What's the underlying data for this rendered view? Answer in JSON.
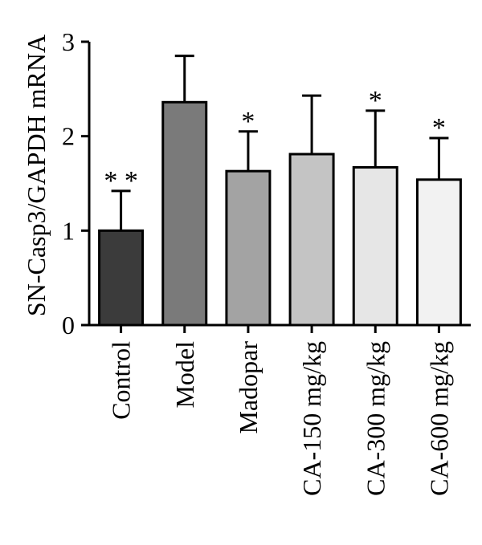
{
  "chart_data": {
    "type": "bar",
    "ylabel": "SN-Casp3/GAPDH mRNA",
    "xlabel": "",
    "ylim": [
      0,
      3
    ],
    "yticks": [
      0,
      1,
      2,
      3
    ],
    "grid": false,
    "categories": [
      "Control",
      "Model",
      "Madopar",
      "CA-150 mg/kg",
      "CA-300 mg/kg",
      "CA-600 mg/kg"
    ],
    "values": [
      1.0,
      2.36,
      1.63,
      1.81,
      1.67,
      1.54
    ],
    "errors": [
      0.42,
      0.49,
      0.42,
      0.62,
      0.6,
      0.44
    ],
    "significance": [
      "**",
      "",
      "*",
      "",
      "*",
      "*"
    ],
    "colors": [
      "#3b3b3b",
      "#7a7a7a",
      "#a3a3a3",
      "#c4c4c4",
      "#e6e6e6",
      "#f2f2f2"
    ]
  }
}
